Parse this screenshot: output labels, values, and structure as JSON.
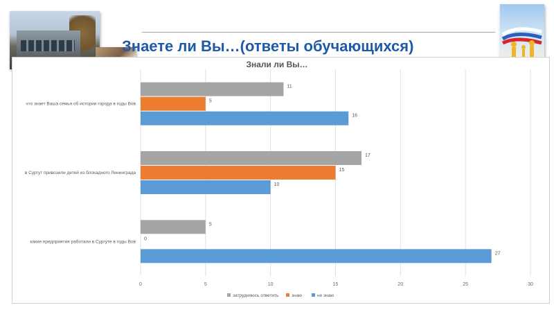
{
  "header": {
    "title": "Знаете ли Вы…(ответы обучающихся)"
  },
  "colors": {
    "title": "#1f5aa6",
    "series": [
      "#a5a5a5",
      "#ed7d31",
      "#5b9bd5"
    ]
  },
  "chart_data": {
    "type": "bar",
    "orientation": "horizontal",
    "title": "Знали ли Вы…",
    "categories": [
      "что знает Ваша семья об истории города в годы Вов",
      "в Сургут привозили детей из блокадного Ленинграда",
      "какие предприятия  работали в Сургуте в годы Вов"
    ],
    "series": [
      {
        "name": "затрудняюсь ответить",
        "values": [
          11,
          17,
          5
        ]
      },
      {
        "name": "знаю",
        "values": [
          5,
          15,
          0
        ]
      },
      {
        "name": "не знаю",
        "values": [
          16,
          10,
          27
        ]
      }
    ],
    "xlim": [
      0,
      30
    ],
    "xticks": [
      0,
      5,
      10,
      15,
      20,
      25,
      30
    ],
    "grid": true,
    "legend": "bottom"
  }
}
